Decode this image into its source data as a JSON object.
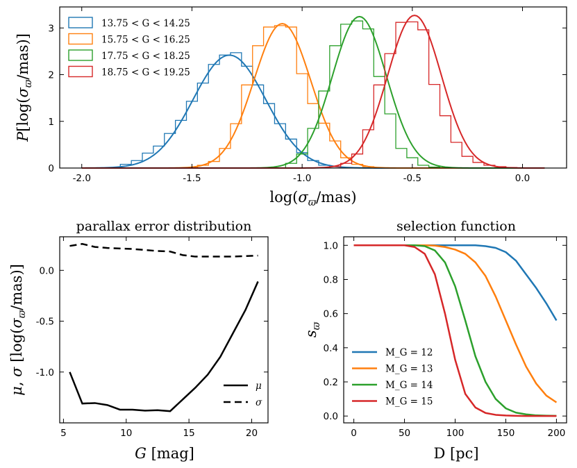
{
  "colors": {
    "blue": "#1f77b4",
    "orange": "#ff7f0e",
    "green": "#2ca02c",
    "red": "#d62728",
    "black": "#000000"
  },
  "chart_data": [
    {
      "id": "top",
      "type": "line",
      "title": "",
      "xlabel": "log(σ_ϖ/mas)",
      "ylabel": "P[log(σ_ϖ/mas)]",
      "xlim": [
        -2.1,
        0.2
      ],
      "ylim": [
        0,
        3.45
      ],
      "xticks": [
        -2.0,
        -1.5,
        -1.0,
        -0.5,
        0.0
      ],
      "xtick_labels": [
        "-2.0",
        "-1.5",
        "-1.0",
        "-0.5",
        "0.0"
      ],
      "yticks": [
        0,
        1,
        2,
        3
      ],
      "ytick_labels": [
        "0",
        "1",
        "2",
        "3"
      ],
      "legend_position": "top-left",
      "hist_bin_width": 0.05,
      "series": [
        {
          "name": "13.75 < G < 14.25",
          "color": "blue",
          "mean": -1.33,
          "sigma": 0.165,
          "hist_x": [
            -1.8,
            -1.75,
            -1.7,
            -1.65,
            -1.6,
            -1.55,
            -1.5,
            -1.45,
            -1.4,
            -1.35,
            -1.3,
            -1.25,
            -1.2,
            -1.15,
            -1.1,
            -1.05,
            -1.0,
            -0.95,
            -0.9
          ],
          "hist_y": [
            0.08,
            0.16,
            0.32,
            0.47,
            0.74,
            1.02,
            1.43,
            1.82,
            2.22,
            2.42,
            2.47,
            2.18,
            1.78,
            1.38,
            0.95,
            0.62,
            0.33,
            0.16,
            0.06
          ]
        },
        {
          "name": "15.75 < G < 16.25",
          "color": "orange",
          "mean": -1.09,
          "sigma": 0.129,
          "hist_x": [
            -1.45,
            -1.4,
            -1.35,
            -1.3,
            -1.25,
            -1.2,
            -1.15,
            -1.1,
            -1.05,
            -1.0,
            -0.95,
            -0.9,
            -0.85,
            -0.8,
            -0.75,
            -0.7
          ],
          "hist_y": [
            0.06,
            0.14,
            0.42,
            0.95,
            1.78,
            2.62,
            3.02,
            3.05,
            3.02,
            2.02,
            1.38,
            0.96,
            0.58,
            0.22,
            0.08,
            0.03
          ]
        },
        {
          "name": "17.75 < G < 18.25",
          "color": "green",
          "mean": -0.74,
          "sigma": 0.123,
          "hist_x": [
            -1.05,
            -1.0,
            -0.95,
            -0.9,
            -0.85,
            -0.8,
            -0.75,
            -0.7,
            -0.65,
            -0.6,
            -0.55,
            -0.5,
            -0.45,
            -0.4
          ],
          "hist_y": [
            0.1,
            0.3,
            0.85,
            1.65,
            2.62,
            3.08,
            3.15,
            2.98,
            1.96,
            1.16,
            0.42,
            0.22,
            0.06,
            0.02
          ]
        },
        {
          "name": "18.75 < G < 19.25",
          "color": "red",
          "mean": -0.49,
          "sigma": 0.122,
          "hist_x": [
            -0.85,
            -0.8,
            -0.75,
            -0.7,
            -0.65,
            -0.6,
            -0.55,
            -0.5,
            -0.45,
            -0.4,
            -0.35,
            -0.3,
            -0.25,
            -0.2,
            -0.15,
            -0.1,
            -0.05
          ],
          "hist_y": [
            0.03,
            0.1,
            0.3,
            0.82,
            1.78,
            2.45,
            3.12,
            3.13,
            2.96,
            1.79,
            1.12,
            0.55,
            0.25,
            0.12,
            0.06,
            0.03,
            0.01
          ]
        }
      ]
    },
    {
      "id": "left",
      "type": "line",
      "title": "parallax error distribution",
      "xlabel": "G [mag]",
      "ylabel": "μ, σ [log(σ_ϖ/mas)]",
      "xlim": [
        4.7,
        21.3
      ],
      "ylim": [
        -1.5,
        0.33
      ],
      "xticks": [
        5,
        10,
        15,
        20
      ],
      "xtick_labels": [
        "5",
        "10",
        "15",
        "20"
      ],
      "yticks": [
        -1.0,
        -0.5,
        0.0
      ],
      "ytick_labels": [
        "-1.0",
        "-0.5",
        "0.0"
      ],
      "legend_position": "bottom-right",
      "x": [
        5.5,
        6.5,
        7.5,
        8.5,
        9.5,
        10.5,
        11.5,
        12.5,
        13.5,
        14.5,
        15.5,
        16.5,
        17.5,
        18.5,
        19.5,
        20.5
      ],
      "series": [
        {
          "name": "μ",
          "style": "solid",
          "values": [
            -1.0,
            -1.31,
            -1.305,
            -1.325,
            -1.37,
            -1.37,
            -1.38,
            -1.375,
            -1.385,
            -1.27,
            -1.155,
            -1.025,
            -0.85,
            -0.62,
            -0.39,
            -0.11
          ]
        },
        {
          "name": "σ",
          "style": "dashed",
          "values": [
            0.24,
            0.26,
            0.23,
            0.22,
            0.215,
            0.21,
            0.2,
            0.19,
            0.185,
            0.15,
            0.135,
            0.135,
            0.135,
            0.135,
            0.14,
            0.145
          ]
        }
      ]
    },
    {
      "id": "right",
      "type": "line",
      "title": "selection function",
      "xlabel": "D [pc]",
      "ylabel": "s_ϖ",
      "xlim": [
        -10,
        210
      ],
      "ylim": [
        -0.04,
        1.05
      ],
      "xticks": [
        0,
        50,
        100,
        150,
        200
      ],
      "xtick_labels": [
        "0",
        "50",
        "100",
        "150",
        "200"
      ],
      "yticks": [
        0.0,
        0.2,
        0.4,
        0.6,
        0.8,
        1.0
      ],
      "ytick_labels": [
        "0.0",
        "0.2",
        "0.4",
        "0.6",
        "0.8",
        "1.0"
      ],
      "legend_position": "bottom-left",
      "x": [
        0,
        10,
        20,
        30,
        40,
        50,
        60,
        70,
        80,
        90,
        100,
        110,
        120,
        130,
        140,
        150,
        160,
        170,
        180,
        190,
        200
      ],
      "series": [
        {
          "name": "M_G = 12",
          "color": "blue",
          "values": [
            1,
            1,
            1,
            1,
            1,
            1,
            1,
            1,
            1,
            1,
            1,
            1,
            1,
            0.995,
            0.985,
            0.96,
            0.91,
            0.83,
            0.75,
            0.66,
            0.56
          ]
        },
        {
          "name": "M_G = 13",
          "color": "orange",
          "values": [
            1,
            1,
            1,
            1,
            1,
            1,
            1,
            1,
            0.998,
            0.99,
            0.975,
            0.95,
            0.9,
            0.82,
            0.7,
            0.56,
            0.42,
            0.29,
            0.19,
            0.12,
            0.08
          ]
        },
        {
          "name": "M_G = 14",
          "color": "green",
          "values": [
            1,
            1,
            1,
            1,
            1,
            1,
            1,
            0.995,
            0.97,
            0.9,
            0.76,
            0.56,
            0.35,
            0.2,
            0.1,
            0.045,
            0.02,
            0.01,
            0.004,
            0.002,
            0.001
          ]
        },
        {
          "name": "M_G = 15",
          "color": "red",
          "values": [
            1,
            1,
            1,
            1,
            1,
            1,
            0.99,
            0.95,
            0.83,
            0.6,
            0.33,
            0.13,
            0.05,
            0.018,
            0.007,
            0.003,
            0.001,
            0,
            0,
            0,
            0
          ]
        }
      ]
    }
  ]
}
